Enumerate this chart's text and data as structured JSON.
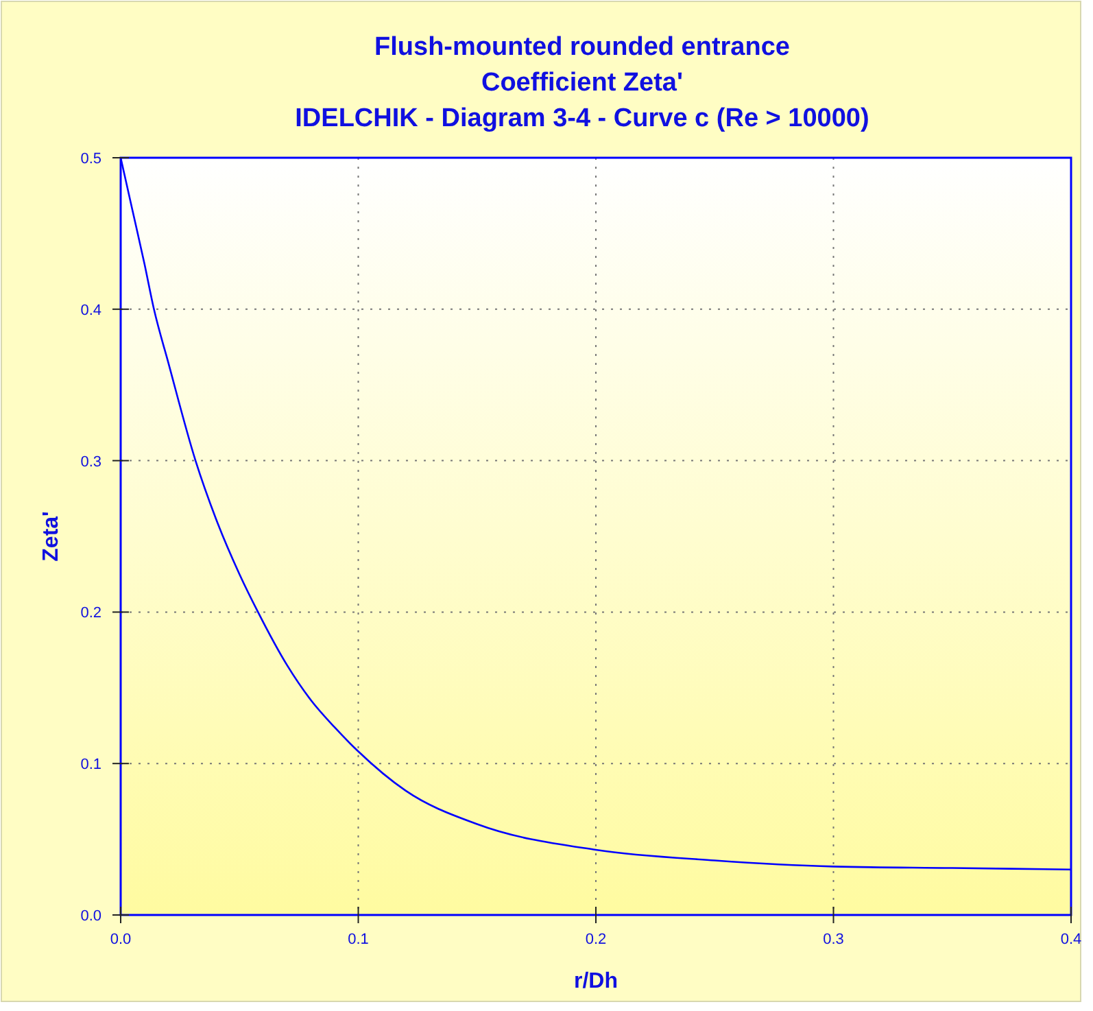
{
  "chart_data": {
    "type": "line",
    "title": "Flush-mounted rounded entrance\nCoefficient Zeta'\nIDELCHIK - Diagram 3-4 - Curve c (Re > 10000)",
    "xlabel": "r/Dh",
    "ylabel": "Zeta'",
    "series": [
      {
        "color": "#0000ff",
        "x": [
          0,
          0.005,
          0.01,
          0.014,
          0.02,
          0.0315,
          0.04,
          0.05,
          0.0578,
          0.07,
          0.08,
          0.09,
          0.1,
          0.12,
          0.15,
          0.2,
          0.25,
          0.3,
          0.35,
          0.4
        ],
        "values": [
          0.5,
          0.465,
          0.43,
          0.4,
          0.365,
          0.3,
          0.262,
          0.225,
          0.2,
          0.165,
          0.142,
          0.124,
          0.108,
          0.082,
          0.06,
          0.043,
          0.036,
          0.032,
          0.031,
          0.03
        ]
      }
    ],
    "xlim": [
      0,
      0.4
    ],
    "ylim": [
      0,
      0.5
    ],
    "xticks": [
      {
        "value": 0,
        "label": "0.0"
      },
      0.1,
      0.2,
      0.3,
      0.4
    ],
    "yticks": [
      {
        "value": 0,
        "label": "0.0"
      },
      0.1,
      0.2,
      0.3,
      0.4,
      0.5
    ],
    "grid": true,
    "marker": "none",
    "line_style": "solid"
  }
}
